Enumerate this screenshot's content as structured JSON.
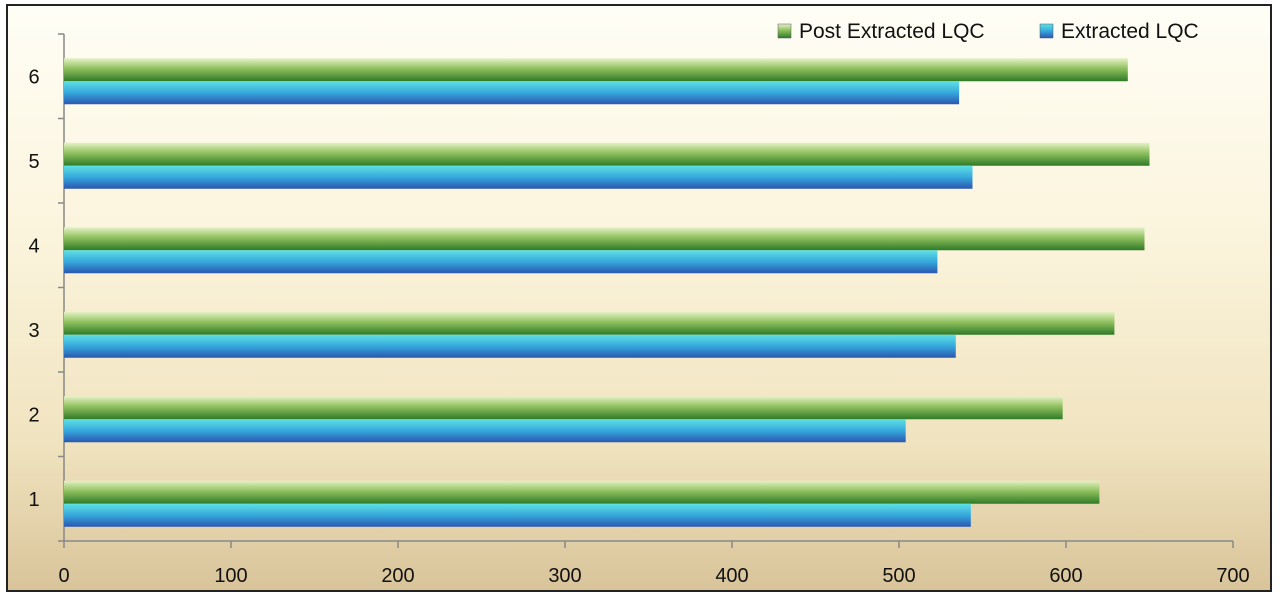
{
  "chart_data": {
    "type": "bar",
    "orientation": "horizontal",
    "categories": [
      "1",
      "2",
      "3",
      "4",
      "5",
      "6"
    ],
    "series": [
      {
        "name": "Post Extracted LQC",
        "values": [
          620,
          598,
          629,
          647,
          650,
          637
        ],
        "color": "#3f8a2e"
      },
      {
        "name": "Extracted LQC",
        "values": [
          543,
          504,
          534,
          523,
          544,
          536
        ],
        "color": "#2e7fc4"
      }
    ],
    "xlim": [
      0,
      700
    ],
    "xticks": [
      0,
      100,
      200,
      300,
      400,
      500,
      600,
      700
    ],
    "title": "",
    "xlabel": "",
    "ylabel": "",
    "grid": false,
    "legend_position": "top-right"
  }
}
